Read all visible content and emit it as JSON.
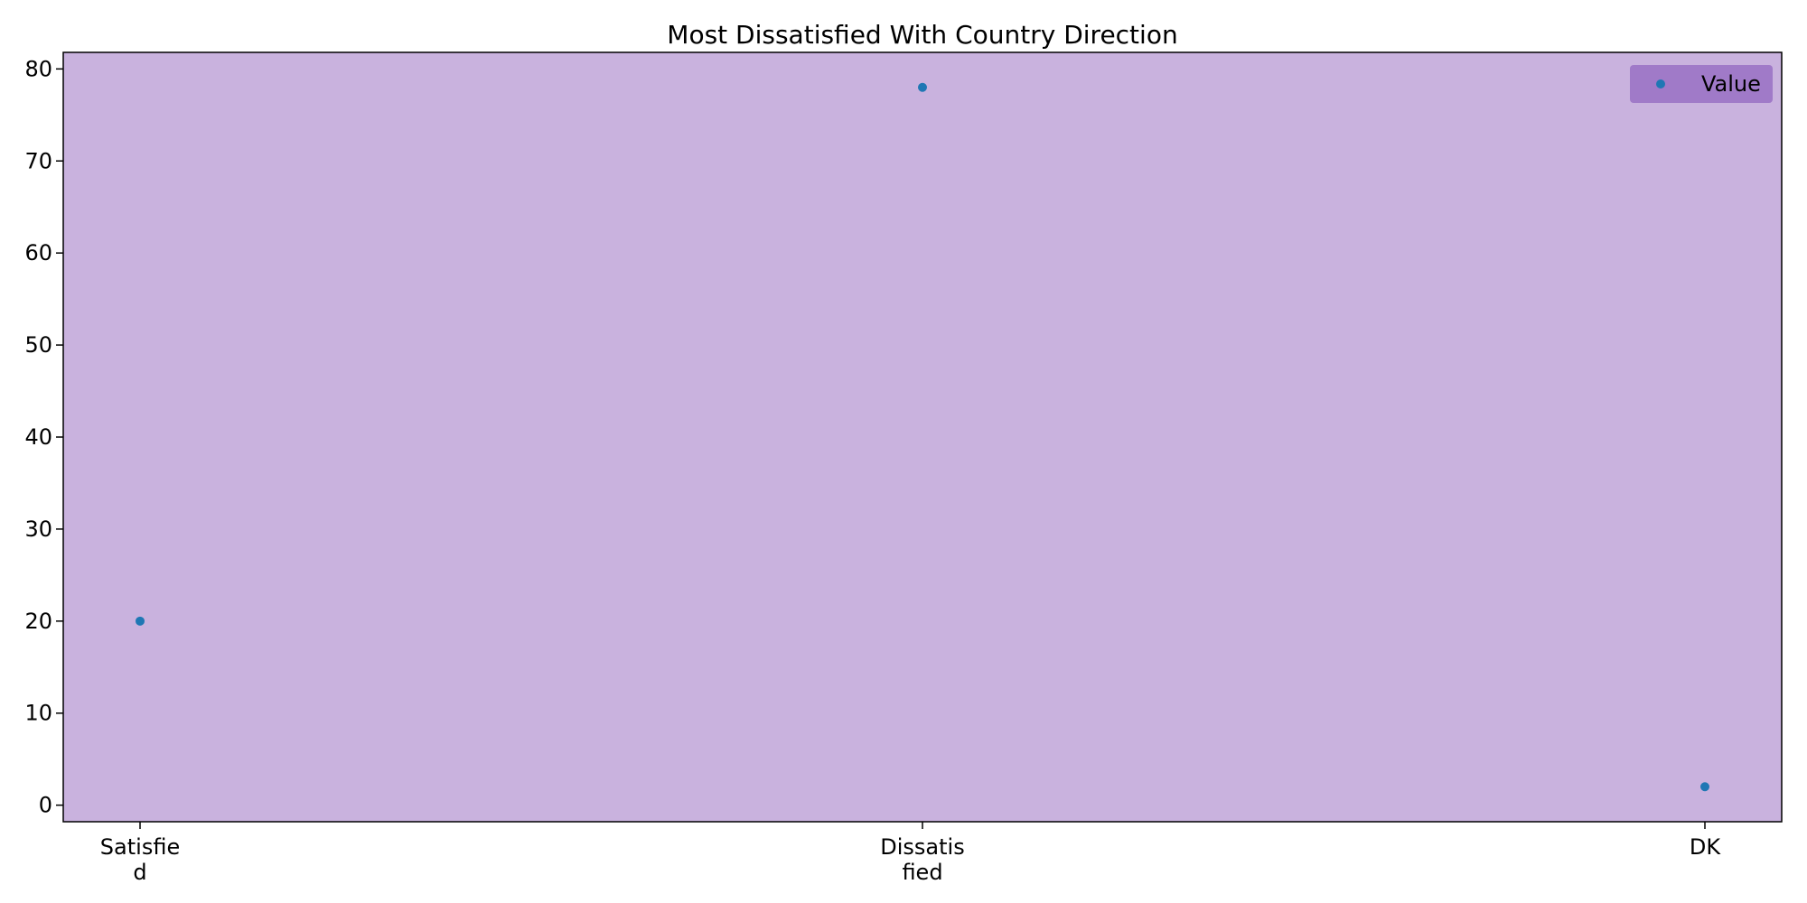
{
  "chart_data": {
    "type": "scatter",
    "title": "Most Dissatisfied With Country Direction",
    "xlabel": "",
    "ylabel": "",
    "categories": [
      "Satisfied",
      "Dissatisfied",
      "DK"
    ],
    "x_tick_lines": [
      [
        "Satisfie",
        "d"
      ],
      [
        "Dissatis",
        "fied"
      ],
      [
        "DK"
      ]
    ],
    "series": [
      {
        "name": "Value",
        "values": [
          20,
          78,
          2
        ],
        "color": "#1f77b4"
      }
    ],
    "ylim": [
      -1.8,
      81.8
    ],
    "yticks": [
      0,
      10,
      20,
      30,
      40,
      50,
      60,
      70,
      80
    ],
    "grid": false,
    "legend_position": "top-right",
    "colors": {
      "plot_background": "#c9b2de",
      "legend_background": "#a07ac8",
      "point": "#1f77b4",
      "axis": "#000000"
    }
  }
}
